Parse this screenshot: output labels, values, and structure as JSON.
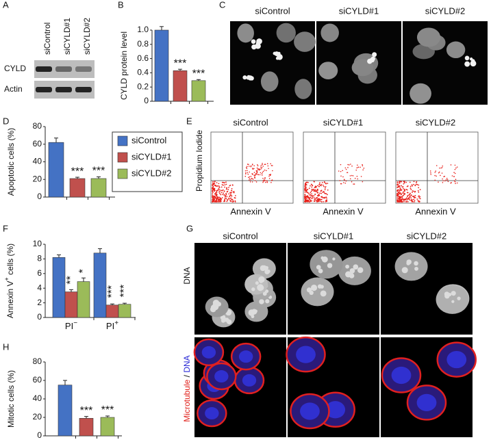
{
  "figure": {
    "panel_letters": [
      "A",
      "B",
      "C",
      "D",
      "E",
      "F",
      "G",
      "H"
    ],
    "conditions": [
      "siControl",
      "siCYLD#1",
      "siCYLD#2"
    ],
    "series_colors": [
      "#4472c4",
      "#c0504d",
      "#9bbb59"
    ]
  },
  "panel_a": {
    "letter": "A",
    "lane_labels": [
      "siControl",
      "siCYLD#1",
      "siCYLD#2"
    ],
    "rows": [
      {
        "label": "CYLD",
        "band_intensity": [
          1.0,
          0.55,
          0.45
        ]
      },
      {
        "label": "Actin",
        "band_intensity": [
          1.0,
          1.0,
          1.0
        ]
      }
    ]
  },
  "panel_c": {
    "letter": "C",
    "image_titles": [
      "siControl",
      "siCYLD#1",
      "siCYLD#2"
    ]
  },
  "panel_e": {
    "letter": "E",
    "plot_titles": [
      "siControl",
      "siCYLD#1",
      "siCYLD#2"
    ],
    "xlabel": "Annexin V",
    "ylabel": "Propidium Iodide",
    "point_color": "#e8201a"
  },
  "panel_g": {
    "letter": "G",
    "column_titles": [
      "siControl",
      "siCYLD#1",
      "siCYLD#2"
    ],
    "row_label_dna": "DNA",
    "row_label_mt_parts": [
      "Microtubule",
      " / ",
      "DNA"
    ],
    "row_label_mt_colors": [
      "#e0201a",
      "#111111",
      "#2626d6"
    ]
  },
  "legend": {
    "entries": [
      "siControl",
      "siCYLD#1",
      "siCYLD#2"
    ]
  },
  "chart_data": [
    {
      "panel": "B",
      "type": "bar",
      "categories": [
        "siControl",
        "siCYLD#1",
        "siCYLD#2"
      ],
      "values": [
        1.0,
        0.43,
        0.29
      ],
      "errors": [
        0.05,
        0.02,
        0.015
      ],
      "significance": [
        "",
        "***",
        "***"
      ],
      "ylabel": "CYLD protein level",
      "ylim": [
        0,
        1.0
      ],
      "yticks": [
        "0",
        "0.2",
        "0.4",
        "0.6",
        "0.8",
        "1.0"
      ]
    },
    {
      "panel": "D",
      "type": "bar",
      "categories": [
        "siControl",
        "siCYLD#1",
        "siCYLD#2"
      ],
      "values": [
        62,
        21,
        21
      ],
      "errors": [
        5,
        1.5,
        2
      ],
      "significance": [
        "",
        "***",
        "***"
      ],
      "ylabel": "Apoptotic cells (%)",
      "ylim": [
        0,
        80
      ],
      "yticks": [
        "0",
        "20",
        "40",
        "60",
        "80"
      ]
    },
    {
      "panel": "F",
      "type": "bar",
      "groups": [
        "PI",
        "PI"
      ],
      "group_superscripts": [
        "−",
        "+"
      ],
      "series": [
        {
          "name": "siControl",
          "values": [
            8.2,
            8.8
          ],
          "errors": [
            0.35,
            0.6
          ]
        },
        {
          "name": "siCYLD#1",
          "values": [
            3.5,
            1.7
          ],
          "errors": [
            0.3,
            0.15
          ]
        },
        {
          "name": "siCYLD#2",
          "values": [
            4.9,
            1.8
          ],
          "errors": [
            0.5,
            0.15
          ]
        }
      ],
      "significance": [
        [
          "",
          "**",
          "*"
        ],
        [
          "",
          "***",
          "***"
        ]
      ],
      "ylabel_parts": [
        "Annexin V",
        "+",
        " cells (%)"
      ],
      "ylim": [
        0,
        10
      ],
      "yticks": [
        "0",
        "2",
        "4",
        "6",
        "8",
        "10"
      ]
    },
    {
      "panel": "H",
      "type": "bar",
      "categories": [
        "siControl",
        "siCYLD#1",
        "siCYLD#2"
      ],
      "values": [
        55,
        19,
        20
      ],
      "errors": [
        5,
        2,
        1.5
      ],
      "significance": [
        "",
        "***",
        "***"
      ],
      "ylabel": "Mitotic cells (%)",
      "ylim": [
        0,
        80
      ],
      "yticks": [
        "0",
        "20",
        "40",
        "60",
        "80"
      ]
    }
  ]
}
